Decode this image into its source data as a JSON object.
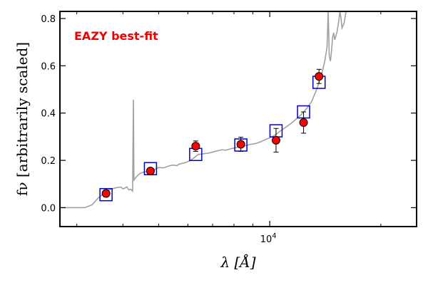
{
  "chart_data": {
    "type": "scatter",
    "annotation": "EAZY best-fit",
    "xlabel": "λ [Å]",
    "ylabel": "fν [arbitrarily scaled]",
    "x_scale": "log",
    "xlim": [
      2700,
      25000
    ],
    "ylim": [
      -0.08,
      0.83
    ],
    "x_ticks": [
      {
        "value": 10000,
        "label": "10",
        "exp": "4"
      }
    ],
    "y_ticks": [
      {
        "value": 0.0,
        "label": "0.0"
      },
      {
        "value": 0.2,
        "label": "0.2"
      },
      {
        "value": 0.4,
        "label": "0.4"
      },
      {
        "value": 0.6,
        "label": "0.6"
      },
      {
        "value": 0.8,
        "label": "0.8"
      }
    ],
    "grid": false,
    "colors": {
      "points": "#ff0000",
      "model_boxes": "#0000cc",
      "template_line": "#a0a0a0",
      "annotation": "#ee0000"
    },
    "observed": [
      {
        "x": 3600,
        "y": 0.06,
        "err": 0.015
      },
      {
        "x": 4750,
        "y": 0.155,
        "err": 0.012
      },
      {
        "x": 6300,
        "y": 0.26,
        "err": 0.022
      },
      {
        "x": 8350,
        "y": 0.268,
        "err": 0.03
      },
      {
        "x": 10400,
        "y": 0.285,
        "err": 0.05
      },
      {
        "x": 12350,
        "y": 0.36,
        "err": 0.045
      },
      {
        "x": 13600,
        "y": 0.555,
        "err": 0.03
      }
    ],
    "model": [
      {
        "x": 3600,
        "y": 0.055
      },
      {
        "x": 4750,
        "y": 0.165
      },
      {
        "x": 6300,
        "y": 0.225
      },
      {
        "x": 8350,
        "y": 0.265
      },
      {
        "x": 10400,
        "y": 0.325
      },
      {
        "x": 12350,
        "y": 0.405
      },
      {
        "x": 13600,
        "y": 0.53
      }
    ],
    "template": [
      [
        2700,
        0.0
      ],
      [
        3150,
        0.0
      ],
      [
        3300,
        0.012
      ],
      [
        3450,
        0.045
      ],
      [
        3600,
        0.065
      ],
      [
        3700,
        0.078
      ],
      [
        3850,
        0.085
      ],
      [
        3950,
        0.087
      ],
      [
        4000,
        0.079
      ],
      [
        4050,
        0.083
      ],
      [
        4100,
        0.088
      ],
      [
        4150,
        0.075
      ],
      [
        4200,
        0.078
      ],
      [
        4250,
        0.07
      ],
      [
        4270,
        0.457
      ],
      [
        4285,
        0.117
      ],
      [
        4350,
        0.13
      ],
      [
        4450,
        0.145
      ],
      [
        4550,
        0.15
      ],
      [
        4650,
        0.153
      ],
      [
        4700,
        0.145
      ],
      [
        4800,
        0.155
      ],
      [
        4900,
        0.163
      ],
      [
        5000,
        0.17
      ],
      [
        5150,
        0.168
      ],
      [
        5300,
        0.175
      ],
      [
        5450,
        0.18
      ],
      [
        5600,
        0.178
      ],
      [
        5700,
        0.185
      ],
      [
        5900,
        0.19
      ],
      [
        6100,
        0.2
      ],
      [
        6250,
        0.212
      ],
      [
        6400,
        0.225
      ],
      [
        6600,
        0.228
      ],
      [
        6800,
        0.23
      ],
      [
        7000,
        0.235
      ],
      [
        7200,
        0.24
      ],
      [
        7400,
        0.245
      ],
      [
        7600,
        0.243
      ],
      [
        7800,
        0.248
      ],
      [
        8000,
        0.252
      ],
      [
        8300,
        0.258
      ],
      [
        8600,
        0.262
      ],
      [
        8900,
        0.268
      ],
      [
        9200,
        0.272
      ],
      [
        9500,
        0.28
      ],
      [
        9800,
        0.29
      ],
      [
        10100,
        0.298
      ],
      [
        10400,
        0.31
      ],
      [
        10700,
        0.325
      ],
      [
        11000,
        0.338
      ],
      [
        11400,
        0.355
      ],
      [
        11800,
        0.375
      ],
      [
        12200,
        0.395
      ],
      [
        12600,
        0.42
      ],
      [
        13000,
        0.45
      ],
      [
        13400,
        0.5
      ],
      [
        13800,
        0.56
      ],
      [
        14100,
        0.62
      ],
      [
        14300,
        0.68
      ],
      [
        14400,
        0.83
      ],
      [
        14500,
        0.64
      ],
      [
        14600,
        0.62
      ],
      [
        14700,
        0.66
      ],
      [
        14800,
        0.72
      ],
      [
        14900,
        0.74
      ],
      [
        15000,
        0.71
      ],
      [
        15200,
        0.74
      ],
      [
        15350,
        0.78
      ],
      [
        15500,
        0.83
      ],
      [
        15600,
        0.8
      ],
      [
        15700,
        0.76
      ],
      [
        15900,
        0.78
      ],
      [
        16100,
        0.83
      ]
    ]
  }
}
